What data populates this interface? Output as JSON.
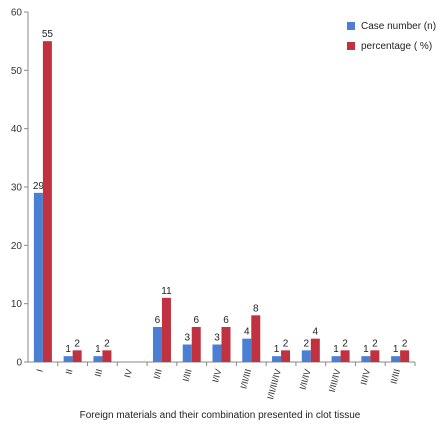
{
  "chart_data": {
    "type": "bar",
    "title": "",
    "xlabel": "Foreign materials and their combination presented in clot tissue",
    "ylabel": "",
    "ylim": [
      0,
      60
    ],
    "yticks": [
      0,
      10,
      20,
      30,
      40,
      50,
      60
    ],
    "grid": false,
    "legend_position": "top-right",
    "categories": [
      "I",
      "II",
      "III",
      "IV",
      "I/II",
      "I/III",
      "I/IV",
      "I/II/III",
      "I/II/III/IV",
      "I/II/IV",
      "I/III/IV",
      "II/IV",
      "II/III"
    ],
    "series": [
      {
        "name": "Case number (n)",
        "color": "#4a7fd4",
        "values": [
          29,
          1,
          1,
          null,
          6,
          3,
          3,
          4,
          1,
          2,
          1,
          1,
          1
        ],
        "labels": [
          "29",
          "1",
          "1",
          "",
          "6",
          "3",
          "3",
          "4",
          "1",
          "2",
          "1",
          "1",
          "1"
        ]
      },
      {
        "name": "percentage ( %)",
        "color": "#c0323f",
        "values": [
          55,
          2,
          2,
          null,
          11,
          6,
          6,
          8,
          2,
          4,
          2,
          2,
          2
        ],
        "labels": [
          "55",
          "2",
          "2",
          "",
          "11",
          "6",
          "6",
          "8",
          "2",
          "4",
          "2",
          "2",
          "2"
        ]
      }
    ]
  }
}
